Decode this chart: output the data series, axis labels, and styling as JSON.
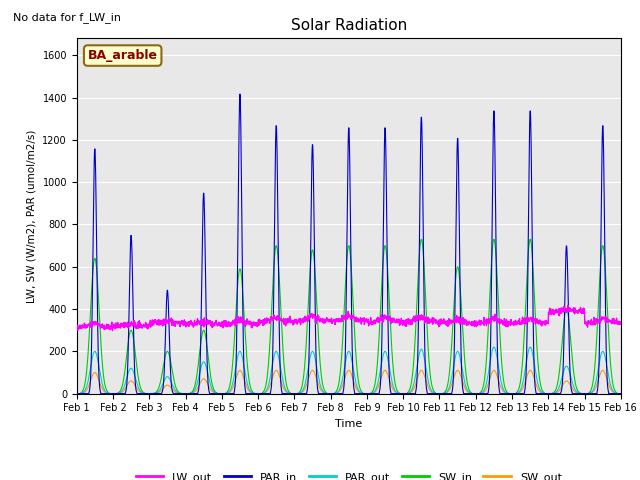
{
  "title": "Solar Radiation",
  "top_left_text": "No data for f_LW_in",
  "legend_label": "BA_arable",
  "xlabel": "Time",
  "ylabel": "LW, SW (W/m2), PAR (umol/m2/s)",
  "ylim": [
    0,
    1680
  ],
  "yticks": [
    0,
    200,
    400,
    600,
    800,
    1000,
    1200,
    1400,
    1600
  ],
  "series_colors": {
    "LW_out": "#ff00ff",
    "PAR_in": "#0000cc",
    "PAR_out": "#00cccc",
    "SW_in": "#00cc00",
    "SW_out": "#ff9900"
  },
  "bg_color": "#e8e8e8",
  "days": 15,
  "points_per_day": 144,
  "day_peaks_PAR_in": [
    1160,
    750,
    490,
    950,
    1420,
    1270,
    1180,
    1260,
    1260,
    1310,
    1210,
    1340,
    1340,
    700,
    1270
  ],
  "day_peaks_SW_in": [
    640,
    300,
    200,
    300,
    590,
    700,
    680,
    700,
    700,
    730,
    600,
    730,
    730,
    400,
    700
  ],
  "day_peaks_SW_out": [
    100,
    60,
    40,
    70,
    110,
    110,
    110,
    110,
    110,
    110,
    110,
    110,
    110,
    60,
    110
  ],
  "day_peaks_PAR_out": [
    200,
    120,
    80,
    150,
    200,
    200,
    200,
    200,
    200,
    210,
    200,
    220,
    220,
    130,
    200
  ],
  "lw_out_base": 310,
  "lw_out_per_day": [
    315,
    320,
    335,
    330,
    330,
    340,
    345,
    345,
    340,
    340,
    335,
    335,
    335,
    390,
    335
  ]
}
